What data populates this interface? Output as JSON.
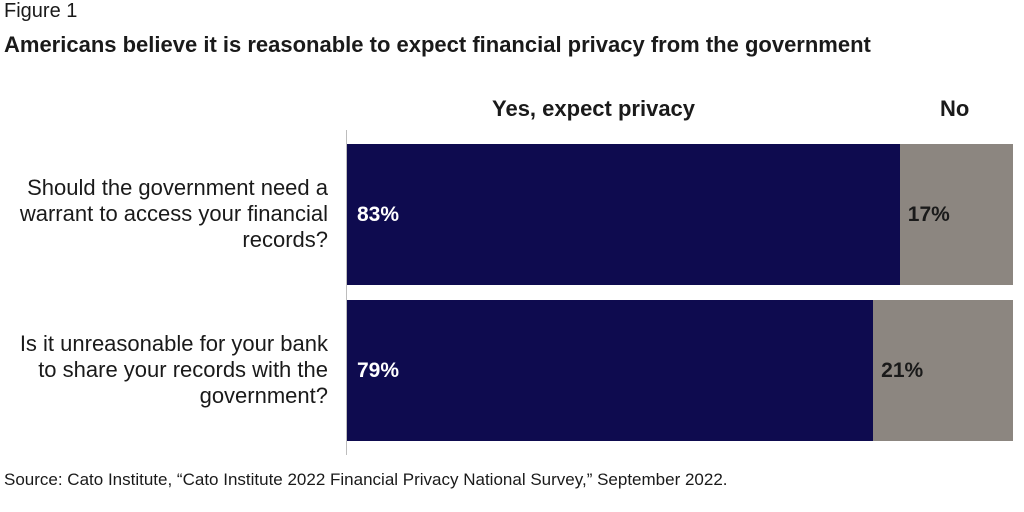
{
  "figure_label": "Figure 1",
  "source": "Source: Cato Institute, “Cato Institute 2022 Financial Privacy National Survey,” September 2022.",
  "colors": {
    "yes": "#0e0b4f",
    "no": "#8c8680"
  },
  "chart_data": {
    "type": "bar",
    "orientation": "horizontal",
    "stacked": true,
    "title": "Americans believe it is reasonable to expect financial privacy from the government",
    "categories": [
      "Should the government need a warrant to access your financial records?",
      "Is it unreasonable for your bank to share your records with the government?"
    ],
    "series": [
      {
        "name": "Yes, expect privacy",
        "values": [
          83,
          79
        ],
        "labels": [
          "83%",
          "79%"
        ]
      },
      {
        "name": "No",
        "values": [
          17,
          21
        ],
        "labels": [
          "17%",
          "21%"
        ]
      }
    ],
    "xlim": [
      0,
      100
    ],
    "legend": "top",
    "grid": false
  }
}
